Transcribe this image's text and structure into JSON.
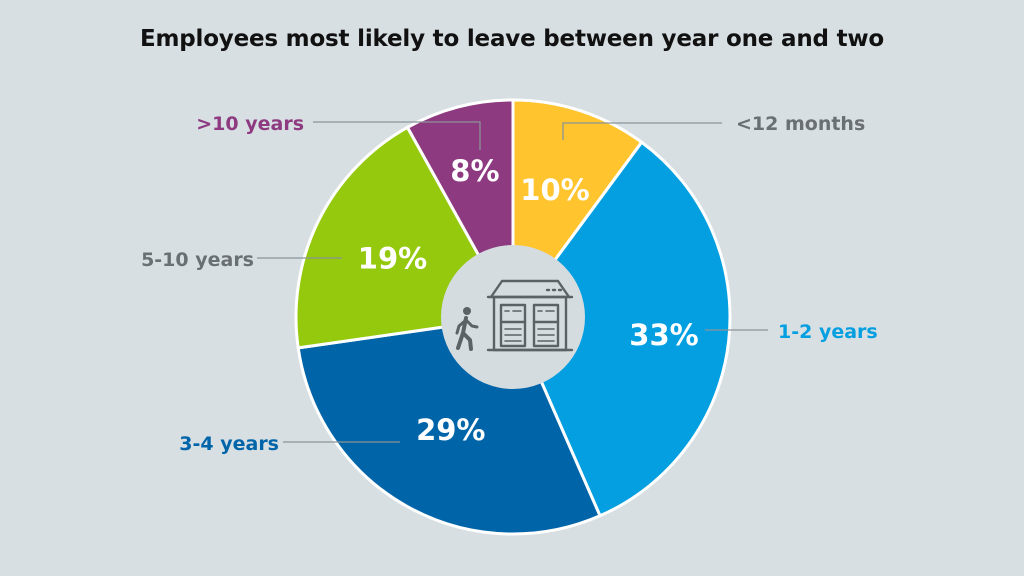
{
  "chart_data": {
    "type": "pie",
    "title": "Employees most likely to leave between year one and two",
    "center_icon": "person-leaving-building-icon",
    "slices": [
      {
        "label": "<12 months",
        "value": 10,
        "value_label": "10%",
        "color": "#ffc42e"
      },
      {
        "label": "1-2 years",
        "value": 33,
        "value_label": "33%",
        "color": "#039fe0"
      },
      {
        "label": "3-4 years",
        "value": 29,
        "value_label": "29%",
        "color": "#0064a9"
      },
      {
        "label": "5-10 years",
        "value": 19,
        "value_label": "19%",
        "color": "#95c90e"
      },
      {
        "label": ">10 years",
        "value": 8,
        "value_label": "8%",
        "color": "#8e3a80"
      }
    ]
  },
  "colors": {
    "background": "#d7dfe3",
    "center_circle": "#d4dce0",
    "icon": "#5a6266",
    "label_grey": "#6a6f73"
  }
}
